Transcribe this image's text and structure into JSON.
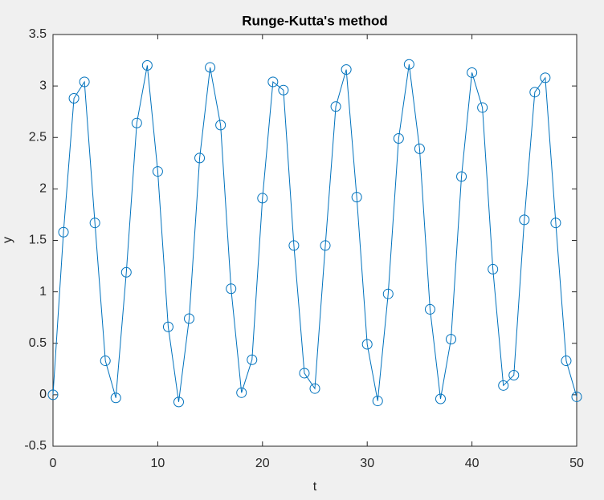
{
  "chart_data": {
    "type": "line",
    "title": "Runge-Kutta's method",
    "x_label": "t",
    "y_label": "y",
    "x": [
      0,
      1,
      2,
      3,
      4,
      5,
      6,
      7,
      8,
      9,
      10,
      11,
      12,
      13,
      14,
      15,
      16,
      17,
      18,
      19,
      20,
      21,
      22,
      23,
      24,
      25,
      26,
      27,
      28,
      29,
      30,
      31,
      32,
      33,
      34,
      35,
      36,
      37,
      38,
      39,
      40,
      41,
      42,
      43,
      44,
      45,
      46,
      47,
      48,
      49,
      50
    ],
    "series": [
      {
        "color": "#0072bd",
        "marker": "circle",
        "values": [
          0,
          1.58,
          2.88,
          3.04,
          1.67,
          0.33,
          -0.03,
          1.19,
          2.64,
          3.2,
          2.17,
          0.66,
          -0.07,
          0.74,
          2.3,
          3.18,
          2.62,
          1.03,
          0.02,
          0.34,
          1.91,
          3.04,
          2.96,
          1.45,
          0.21,
          0.06,
          1.45,
          2.8,
          3.16,
          1.92,
          0.49,
          -0.06,
          0.98,
          2.49,
          3.21,
          2.39,
          0.83,
          -0.04,
          0.54,
          2.12,
          3.13,
          2.79,
          1.22,
          0.09,
          0.19,
          1.7,
          2.94,
          3.08,
          1.67,
          0.33,
          -0.02
        ]
      }
    ],
    "xlim": [
      0,
      50
    ],
    "xticks": [
      0,
      10,
      20,
      30,
      40,
      50
    ],
    "ylim": [
      -0.5,
      3.5
    ],
    "yticks": [
      -0.5,
      0,
      0.5,
      1,
      1.5,
      2,
      2.5,
      3,
      3.5
    ],
    "grid": false
  }
}
